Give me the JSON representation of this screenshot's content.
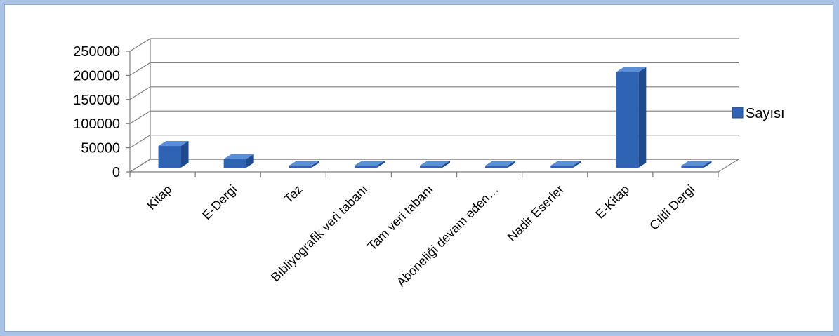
{
  "chart_data": {
    "type": "bar",
    "style": "3d-column",
    "categories": [
      "Kitap",
      "E-Dergi",
      "Tez",
      "Bibliyografik veri tabanı",
      "Tam veri tabanı",
      "Aboneliği devam eden…",
      "Nadir Eserler",
      "E-Kitap",
      "Ciltli Dergi"
    ],
    "series": [
      {
        "name": "Sayısı",
        "values": [
          45000,
          18000,
          500,
          300,
          300,
          300,
          800,
          198000,
          500
        ]
      }
    ],
    "yticks": [
      "250000",
      "200000",
      "150000",
      "100000",
      "50000",
      "0"
    ],
    "ylim": [
      0,
      250000
    ],
    "grid": true,
    "legend_position": "right",
    "colors": {
      "bar": "#2f64b4",
      "bar_dark": "#1f4a8e",
      "bar_top": "#5a8fd8",
      "grid": "#7f7f7f"
    }
  }
}
